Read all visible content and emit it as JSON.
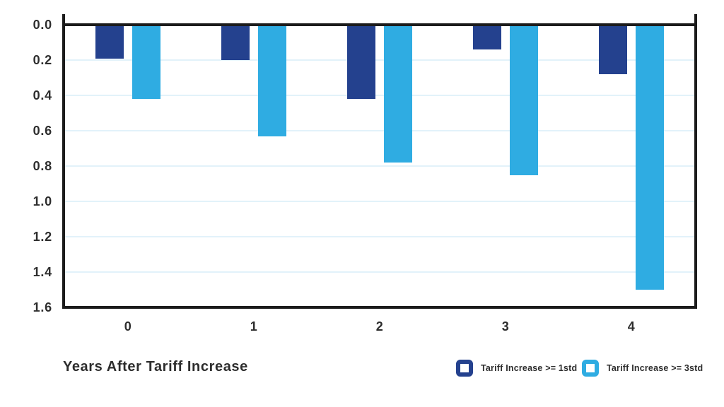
{
  "chart_data": {
    "type": "bar",
    "title": "",
    "xlabel": "Years After Tariff Increase",
    "ylabel": "",
    "categories": [
      "0",
      "1",
      "2",
      "3",
      "4"
    ],
    "series": [
      {
        "name": "Tariff Increase >= 1std",
        "color": "#24418E",
        "values": [
          0.19,
          0.2,
          0.42,
          0.14,
          0.28
        ]
      },
      {
        "name": "Tariff Increase >= 3std",
        "color": "#2FACE2",
        "values": [
          0.42,
          0.63,
          0.78,
          0.85,
          1.5
        ]
      }
    ],
    "y_ticks": [
      "0.0",
      "0.2",
      "0.4",
      "0.6",
      "0.8",
      "1.0",
      "1.2",
      "1.4",
      "1.6"
    ],
    "ylim": [
      0,
      1.6
    ],
    "y_axis_direction": "inverted - bars hang downward from the zero line",
    "grid": true,
    "gridline_color": "#E2F2FA",
    "axis_color": "#1B1B1B",
    "text_color": "#2D2D2D",
    "legend_position": "bottom-right"
  }
}
